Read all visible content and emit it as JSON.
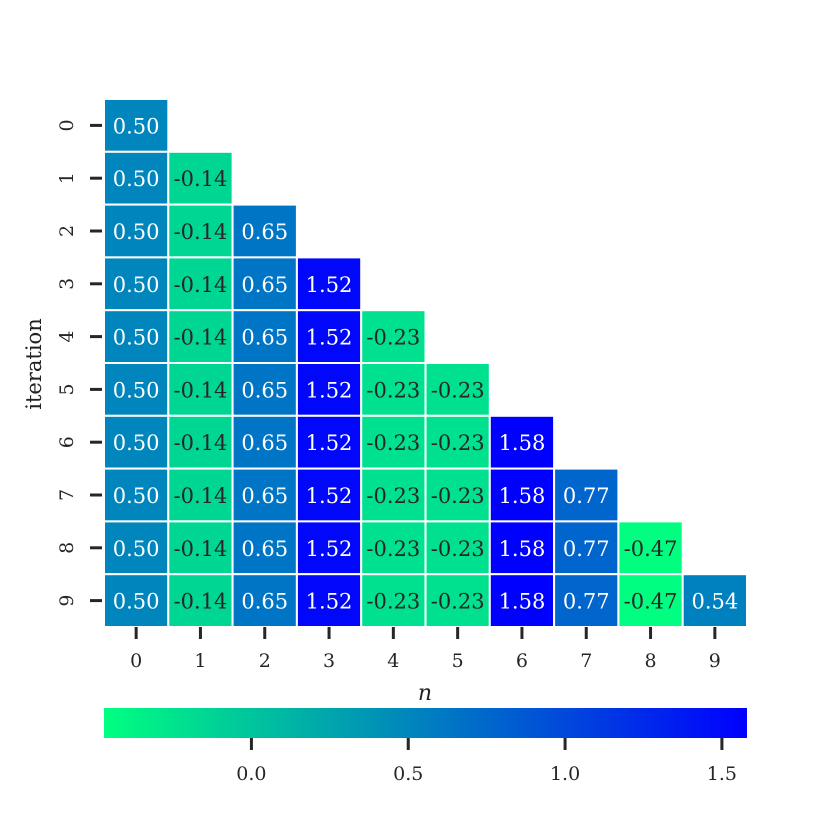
{
  "chart_data": {
    "type": "heatmap",
    "title": "",
    "xlabel": "n",
    "ylabel": "iteration",
    "x_ticks": [
      "0",
      "1",
      "2",
      "3",
      "4",
      "5",
      "6",
      "7",
      "8",
      "9"
    ],
    "y_ticks": [
      "0",
      "1",
      "2",
      "3",
      "4",
      "5",
      "6",
      "7",
      "8",
      "9"
    ],
    "mask": "upper-triangle",
    "values": [
      [
        0.5
      ],
      [
        0.5,
        -0.14
      ],
      [
        0.5,
        -0.14,
        0.65
      ],
      [
        0.5,
        -0.14,
        0.65,
        1.52
      ],
      [
        0.5,
        -0.14,
        0.65,
        1.52,
        -0.23
      ],
      [
        0.5,
        -0.14,
        0.65,
        1.52,
        -0.23,
        -0.23
      ],
      [
        0.5,
        -0.14,
        0.65,
        1.52,
        -0.23,
        -0.23,
        1.58
      ],
      [
        0.5,
        -0.14,
        0.65,
        1.52,
        -0.23,
        -0.23,
        1.58,
        0.77
      ],
      [
        0.5,
        -0.14,
        0.65,
        1.52,
        -0.23,
        -0.23,
        1.58,
        0.77,
        -0.47
      ],
      [
        0.5,
        -0.14,
        0.65,
        1.52,
        -0.23,
        -0.23,
        1.58,
        0.77,
        -0.47,
        0.54
      ]
    ],
    "labels": [
      [
        "0.50"
      ],
      [
        "0.50",
        "-0.14"
      ],
      [
        "0.50",
        "-0.14",
        "0.65"
      ],
      [
        "0.50",
        "-0.14",
        "0.65",
        "1.52"
      ],
      [
        "0.50",
        "-0.14",
        "0.65",
        "1.52",
        "-0.23"
      ],
      [
        "0.50",
        "-0.14",
        "0.65",
        "1.52",
        "-0.23",
        "-0.23"
      ],
      [
        "0.50",
        "-0.14",
        "0.65",
        "1.52",
        "-0.23",
        "-0.23",
        "1.58"
      ],
      [
        "0.50",
        "-0.14",
        "0.65",
        "1.52",
        "-0.23",
        "-0.23",
        "1.58",
        "0.77"
      ],
      [
        "0.50",
        "-0.14",
        "0.65",
        "1.52",
        "-0.23",
        "-0.23",
        "1.58",
        "0.77",
        "-0.47"
      ],
      [
        "0.50",
        "-0.14",
        "0.65",
        "1.52",
        "-0.23",
        "-0.23",
        "1.58",
        "0.77",
        "-0.47",
        "0.54"
      ]
    ],
    "colorbar": {
      "orientation": "horizontal",
      "placement": "bottom",
      "vmin": -0.47,
      "vmax": 1.58,
      "ticks": [
        0.0,
        0.5,
        1.0,
        1.5
      ],
      "tick_labels": [
        "0.0",
        "0.5",
        "1.0",
        "1.5"
      ],
      "color_low": "#00ff80",
      "color_high": "#0000ff"
    }
  }
}
